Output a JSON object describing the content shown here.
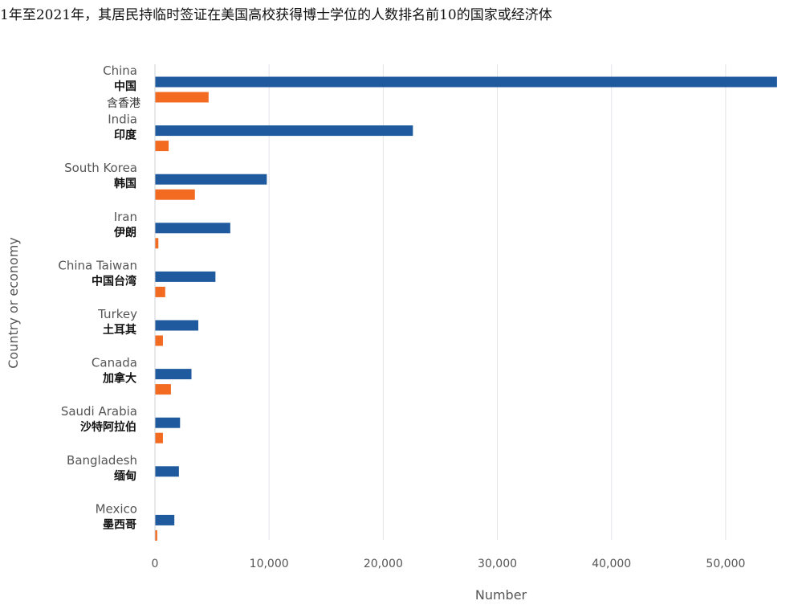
{
  "chart_data": {
    "type": "bar",
    "orientation": "horizontal",
    "title": "1年至2021年，其居民持临时签证在美国高校获得博士学位的人数排名前10的国家或经济体",
    "xlabel": "Number",
    "ylabel": "Country or economy",
    "xlim": [
      0,
      55000
    ],
    "x_ticks": [
      {
        "value": 0,
        "label": "0"
      },
      {
        "value": 10000,
        "label": "10,000"
      },
      {
        "value": 20000,
        "label": "20,000"
      },
      {
        "value": 30000,
        "label": "30,000"
      },
      {
        "value": 40000,
        "label": "40,000"
      },
      {
        "value": 50000,
        "label": "50,000"
      }
    ],
    "grid": true,
    "categories": [
      {
        "en": "China",
        "zh": "中国",
        "zh2": "含香港"
      },
      {
        "en": "India",
        "zh": "印度"
      },
      {
        "en": "South Korea",
        "zh": "韩国"
      },
      {
        "en": "Iran",
        "zh": "伊朗"
      },
      {
        "en": "China Taiwan",
        "zh": "中国台湾"
      },
      {
        "en": "Turkey",
        "zh": "土耳其"
      },
      {
        "en": "Canada",
        "zh": "加拿大"
      },
      {
        "en": "Saudi Arabia",
        "zh": "沙特阿拉伯"
      },
      {
        "en": "Bangladesh",
        "zh": "缅甸"
      },
      {
        "en": "Mexico",
        "zh": "墨西哥"
      }
    ],
    "series": [
      {
        "color": "#1f5a9e",
        "values": [
          54500,
          22600,
          9800,
          6600,
          5300,
          3800,
          3200,
          2200,
          2100,
          1700
        ]
      },
      {
        "color": "#f26b21",
        "values": [
          4700,
          1200,
          3500,
          300,
          900,
          700,
          1400,
          700,
          0,
          200
        ]
      }
    ]
  }
}
